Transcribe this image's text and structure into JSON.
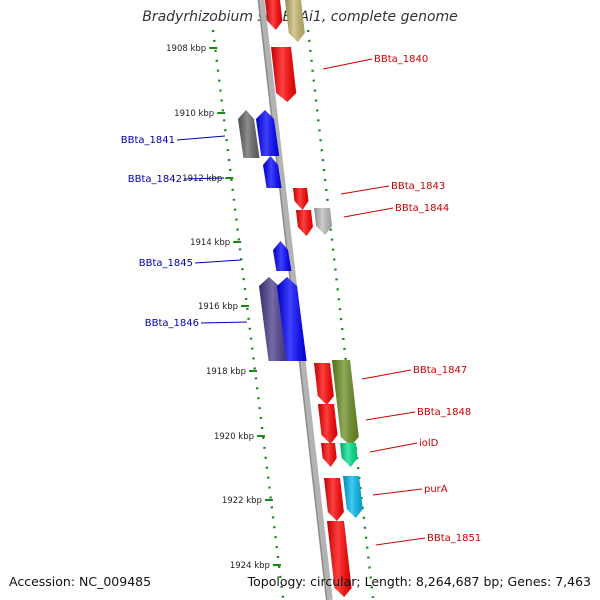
{
  "title": "Bradyrhizobium sp. BTAi1, complete genome",
  "footer": {
    "accession": "Accession: NC_009485",
    "summary": "Topology: circular; Length: 8,264,687 bp; Genes: 7,463"
  },
  "colors": {
    "forward_strand": "#ff0000",
    "reverse_strand": "#0000ff",
    "tick_dots": "#1a8a1a",
    "backbone": "#999999"
  },
  "kbp_ticks": [
    {
      "label": "1908 kbp",
      "pos": 1908
    },
    {
      "label": "1910 kbp",
      "pos": 1910
    },
    {
      "label": "1912 kbp",
      "pos": 1912
    },
    {
      "label": "1914 kbp",
      "pos": 1914
    },
    {
      "label": "1916 kbp",
      "pos": 1916
    },
    {
      "label": "1918 kbp",
      "pos": 1918
    },
    {
      "label": "1920 kbp",
      "pos": 1920
    },
    {
      "label": "1922 kbp",
      "pos": 1922
    },
    {
      "label": "1924 kbp",
      "pos": 1924
    }
  ],
  "gene_labels": [
    {
      "text": "BBta_1840",
      "side": "right",
      "color": "#cc0000"
    },
    {
      "text": "BBta_1841",
      "side": "left",
      "color": "#0000aa"
    },
    {
      "text": "BBta_1842",
      "side": "left",
      "color": "#0000aa"
    },
    {
      "text": "BBta_1843",
      "side": "right",
      "color": "#cc0000"
    },
    {
      "text": "BBta_1844",
      "side": "right",
      "color": "#cc0000"
    },
    {
      "text": "BBta_1845",
      "side": "left",
      "color": "#0000aa"
    },
    {
      "text": "BBta_1846",
      "side": "left",
      "color": "#0000aa"
    },
    {
      "text": "BBta_1847",
      "side": "right",
      "color": "#cc0000"
    },
    {
      "text": "BBta_1848",
      "side": "right",
      "color": "#cc0000"
    },
    {
      "text": "iolD",
      "side": "right",
      "color": "#cc0000"
    },
    {
      "text": "purA",
      "side": "right",
      "color": "#cc0000"
    },
    {
      "text": "BBta_1851",
      "side": "right",
      "color": "#cc0000"
    }
  ],
  "features": [
    {
      "name": "BBta_1840 (upper)",
      "strand": "forward",
      "color": "#ff0000"
    },
    {
      "name": "feature-tan",
      "strand": "forward",
      "color": "#c8b870"
    },
    {
      "name": "BBta_1840",
      "strand": "forward",
      "color": "#ff0000"
    },
    {
      "name": "BBta_1841 (grey)",
      "strand": "reverse",
      "color": "#666666"
    },
    {
      "name": "BBta_1841",
      "strand": "reverse",
      "color": "#0000ff"
    },
    {
      "name": "BBta_1842",
      "strand": "reverse",
      "color": "#0000ff"
    },
    {
      "name": "BBta_1843",
      "strand": "forward",
      "color": "#ff0000"
    },
    {
      "name": "BBta_1844",
      "strand": "forward",
      "color": "#ff0000"
    },
    {
      "name": "BBta_1844 (grey)",
      "strand": "forward",
      "color": "#bbbbbb"
    },
    {
      "name": "BBta_1845",
      "strand": "reverse",
      "color": "#0000ff"
    },
    {
      "name": "BBta_1846 (purple)",
      "strand": "reverse",
      "color": "#4a3a8a"
    },
    {
      "name": "BBta_1846",
      "strand": "reverse",
      "color": "#0000ff"
    },
    {
      "name": "BBta_1847",
      "strand": "forward",
      "color": "#ff0000"
    },
    {
      "name": "BBta_1847 (olive)",
      "strand": "forward",
      "color": "#6b8e23"
    },
    {
      "name": "BBta_1848",
      "strand": "forward",
      "color": "#ff0000"
    },
    {
      "name": "BBta_1848b",
      "strand": "forward",
      "color": "#ff0000"
    },
    {
      "name": "iolD",
      "strand": "forward",
      "color": "#00e08a"
    },
    {
      "name": "purA (red)",
      "strand": "forward",
      "color": "#ff0000"
    },
    {
      "name": "purA",
      "strand": "forward",
      "color": "#00b8f0"
    },
    {
      "name": "BBta_1851",
      "strand": "forward",
      "color": "#ff0000"
    }
  ]
}
